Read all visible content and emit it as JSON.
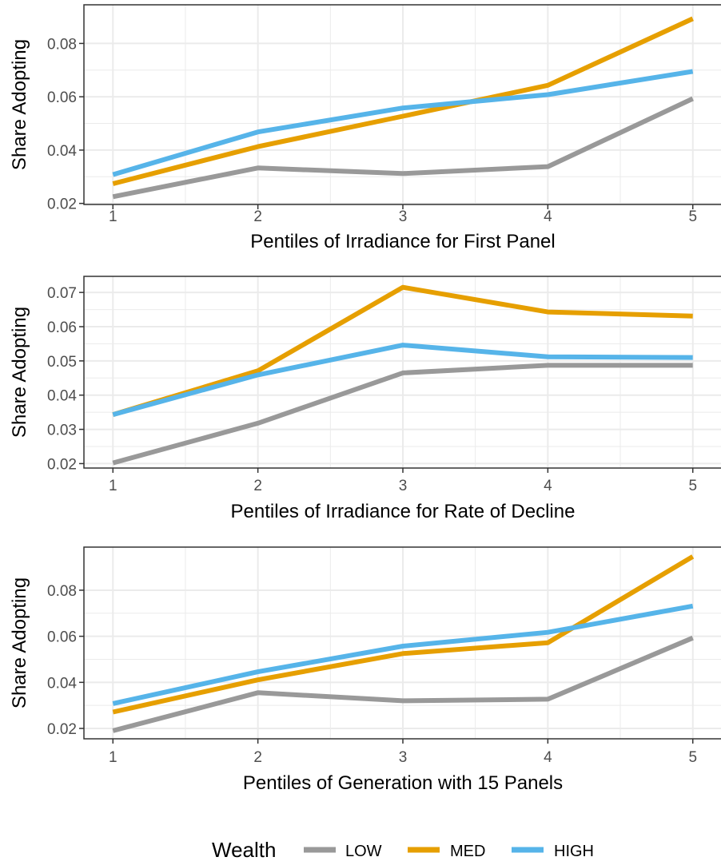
{
  "legend": {
    "title": "Wealth",
    "entries": [
      {
        "label": "LOW",
        "color": "#999999"
      },
      {
        "label": "MED",
        "color": "#E69F00"
      },
      {
        "label": "HIGH",
        "color": "#56B4E9"
      }
    ]
  },
  "chart_data": [
    {
      "type": "line",
      "xlabel": "Pentiles of Irradiance for First Panel",
      "ylabel": "Share Adopting",
      "x": [
        1,
        2,
        3,
        4,
        5
      ],
      "xlim": [
        0.8,
        5.2
      ],
      "ylim": [
        0.0196,
        0.0945
      ],
      "yticks": [
        0.02,
        0.04,
        0.06,
        0.08
      ],
      "ytick_labels": [
        "0.02",
        "0.04",
        "0.06",
        "0.08"
      ],
      "grid": true,
      "series": [
        {
          "name": "LOW",
          "color": "#999999",
          "values": [
            0.0225,
            0.0333,
            0.0312,
            0.0338,
            0.0593
          ]
        },
        {
          "name": "MED",
          "color": "#E69F00",
          "values": [
            0.0274,
            0.0413,
            0.0527,
            0.0643,
            0.0893
          ]
        },
        {
          "name": "HIGH",
          "color": "#56B4E9",
          "values": [
            0.0308,
            0.0468,
            0.0558,
            0.0608,
            0.0695
          ]
        }
      ]
    },
    {
      "type": "line",
      "xlabel": "Pentiles of Irradiance for Rate of Decline",
      "ylabel": "Share Adopting",
      "x": [
        1,
        2,
        3,
        4,
        5
      ],
      "xlim": [
        0.8,
        5.2
      ],
      "ylim": [
        0.0187,
        0.0747
      ],
      "yticks": [
        0.02,
        0.03,
        0.04,
        0.05,
        0.06,
        0.07
      ],
      "ytick_labels": [
        "0.02",
        "0.03",
        "0.04",
        "0.05",
        "0.06",
        "0.07"
      ],
      "grid": true,
      "series": [
        {
          "name": "LOW",
          "color": "#999999",
          "values": [
            0.0202,
            0.0318,
            0.0465,
            0.0487,
            0.0487
          ]
        },
        {
          "name": "MED",
          "color": "#E69F00",
          "values": [
            0.0343,
            0.0471,
            0.0715,
            0.0643,
            0.0631
          ]
        },
        {
          "name": "HIGH",
          "color": "#56B4E9",
          "values": [
            0.0343,
            0.0459,
            0.0546,
            0.0512,
            0.051
          ]
        }
      ]
    },
    {
      "type": "line",
      "xlabel": "Pentiles of Generation with 15 Panels",
      "ylabel": "Share Adopting",
      "x": [
        1,
        2,
        3,
        4,
        5
      ],
      "xlim": [
        0.8,
        5.2
      ],
      "ylim": [
        0.0155,
        0.0987
      ],
      "yticks": [
        0.02,
        0.04,
        0.06,
        0.08
      ],
      "ytick_labels": [
        "0.02",
        "0.04",
        "0.06",
        "0.08"
      ],
      "grid": true,
      "series": [
        {
          "name": "LOW",
          "color": "#999999",
          "values": [
            0.019,
            0.0355,
            0.032,
            0.0327,
            0.0593
          ]
        },
        {
          "name": "MED",
          "color": "#E69F00",
          "values": [
            0.0271,
            0.0411,
            0.0525,
            0.0572,
            0.0946
          ]
        },
        {
          "name": "HIGH",
          "color": "#56B4E9",
          "values": [
            0.0308,
            0.0446,
            0.0557,
            0.0617,
            0.0731
          ]
        }
      ]
    }
  ]
}
